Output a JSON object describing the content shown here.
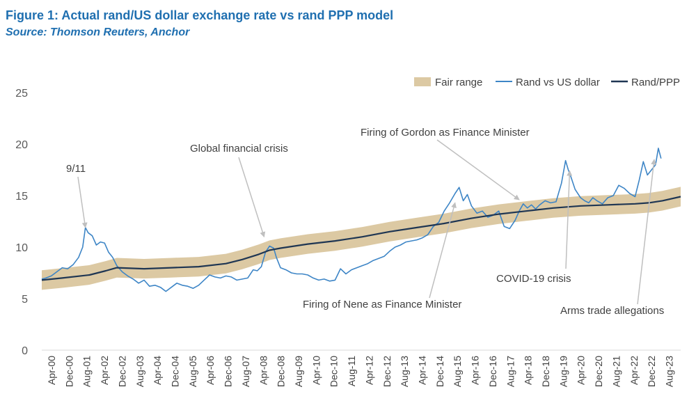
{
  "header": {
    "title": "Figure 1: Actual rand/US dollar exchange rate vs rand PPP model",
    "source": "Source: Thomson Reuters, Anchor"
  },
  "colors": {
    "fair": "#dcc9a3",
    "rand": "#3d85c6",
    "ppp": "#1f3653",
    "arrow": "#bfbfbf",
    "text": "#404040",
    "axis": "#d9d9d9"
  },
  "chart_data": {
    "type": "line",
    "title": "Figure 1: Actual rand/US dollar exchange rate vs rand PPP model",
    "ylim": [
      0,
      25
    ],
    "y_ticks": [
      "0",
      "5",
      "10",
      "15",
      "20",
      "25"
    ],
    "x_range": [
      2000.25,
      2023.67
    ],
    "x_tick_labels": [
      "Apr-00",
      "Dec-00",
      "Aug-01",
      "Apr-02",
      "Dec-02",
      "Aug-03",
      "Apr-04",
      "Dec-04",
      "Aug-05",
      "Apr-06",
      "Dec-06",
      "Aug-07",
      "Apr-08",
      "Dec-08",
      "Aug-09",
      "Apr-10",
      "Dec-10",
      "Aug-11",
      "Apr-12",
      "Dec-12",
      "Aug-13",
      "Apr-14",
      "Dec-14",
      "Aug-15",
      "Apr-16",
      "Dec-16",
      "Aug-17",
      "Apr-18",
      "Dec-18",
      "Aug-19",
      "Apr-20",
      "Dec-20",
      "Aug-21",
      "Apr-22",
      "Dec-22",
      "Aug-23"
    ],
    "legend": [
      {
        "name": "Fair range",
        "style": "band"
      },
      {
        "name": "Rand vs US dollar",
        "style": "line"
      },
      {
        "name": "Rand/PPP",
        "style": "line"
      }
    ],
    "series": [
      {
        "name": "Rand/PPP",
        "x": [
          2000.25,
          2001.0,
          2002.0,
          2002.6,
          2003.0,
          2004.0,
          2005.0,
          2006.0,
          2007.0,
          2007.6,
          2008.2,
          2008.6,
          2009.0,
          2010.0,
          2011.0,
          2012.0,
          2013.0,
          2014.0,
          2015.0,
          2016.0,
          2017.0,
          2018.0,
          2019.0,
          2020.0,
          2021.0,
          2022.0,
          2022.5,
          2023.0,
          2023.67
        ],
        "values": [
          6.8,
          7.0,
          7.3,
          7.7,
          8.0,
          7.9,
          8.0,
          8.1,
          8.4,
          8.8,
          9.3,
          9.7,
          9.9,
          10.3,
          10.6,
          11.0,
          11.5,
          11.9,
          12.3,
          12.8,
          13.2,
          13.5,
          13.8,
          14.0,
          14.1,
          14.2,
          14.3,
          14.5,
          14.9
        ]
      },
      {
        "name": "Fair range",
        "band_half_width": 0.95
      },
      {
        "name": "Rand vs US dollar",
        "x": [
          2000.25,
          2000.4,
          2000.6,
          2000.8,
          2001.0,
          2001.2,
          2001.4,
          2001.6,
          2001.75,
          2001.85,
          2001.95,
          2002.1,
          2002.25,
          2002.4,
          2002.55,
          2002.7,
          2002.85,
          2003.0,
          2003.2,
          2003.4,
          2003.6,
          2003.8,
          2004.0,
          2004.2,
          2004.4,
          2004.6,
          2004.8,
          2005.0,
          2005.2,
          2005.4,
          2005.6,
          2005.8,
          2006.0,
          2006.2,
          2006.4,
          2006.6,
          2006.8,
          2007.0,
          2007.2,
          2007.4,
          2007.6,
          2007.8,
          2008.0,
          2008.15,
          2008.3,
          2008.45,
          2008.6,
          2008.75,
          2008.85,
          2009.0,
          2009.2,
          2009.4,
          2009.6,
          2009.8,
          2010.0,
          2010.2,
          2010.4,
          2010.6,
          2010.8,
          2011.0,
          2011.2,
          2011.4,
          2011.6,
          2011.8,
          2012.0,
          2012.2,
          2012.4,
          2012.6,
          2012.8,
          2013.0,
          2013.2,
          2013.4,
          2013.6,
          2013.8,
          2014.0,
          2014.2,
          2014.4,
          2014.6,
          2014.8,
          2015.0,
          2015.2,
          2015.4,
          2015.55,
          2015.7,
          2015.85,
          2016.0,
          2016.2,
          2016.4,
          2016.6,
          2016.8,
          2017.0,
          2017.2,
          2017.4,
          2017.6,
          2017.75,
          2017.9,
          2018.05,
          2018.2,
          2018.35,
          2018.5,
          2018.7,
          2018.9,
          2019.1,
          2019.3,
          2019.45,
          2019.55,
          2019.65,
          2019.8,
          2020.0,
          2020.15,
          2020.3,
          2020.45,
          2020.6,
          2020.8,
          2021.0,
          2021.2,
          2021.4,
          2021.6,
          2021.8,
          2022.0,
          2022.15,
          2022.3,
          2022.45,
          2022.6,
          2022.75,
          2022.85,
          2022.95
        ],
        "values": [
          6.9,
          7.0,
          7.2,
          7.6,
          8.0,
          7.9,
          8.3,
          9.0,
          10.0,
          11.9,
          11.4,
          11.1,
          10.2,
          10.5,
          10.4,
          9.5,
          9.0,
          8.2,
          7.6,
          7.2,
          6.9,
          6.5,
          6.8,
          6.2,
          6.3,
          6.1,
          5.7,
          6.1,
          6.5,
          6.3,
          6.2,
          6.0,
          6.3,
          6.8,
          7.3,
          7.1,
          7.0,
          7.2,
          7.1,
          6.8,
          6.9,
          7.0,
          7.8,
          7.7,
          8.1,
          9.5,
          10.1,
          9.9,
          9.0,
          8.0,
          7.8,
          7.5,
          7.4,
          7.4,
          7.3,
          7.0,
          6.8,
          6.9,
          6.7,
          6.8,
          7.9,
          7.4,
          7.8,
          8.0,
          8.2,
          8.4,
          8.7,
          8.9,
          9.1,
          9.6,
          10.0,
          10.2,
          10.5,
          10.6,
          10.7,
          10.9,
          11.2,
          12.0,
          12.4,
          13.5,
          14.3,
          15.2,
          15.8,
          14.5,
          15.1,
          14.0,
          13.3,
          13.5,
          12.9,
          13.1,
          13.5,
          12.0,
          11.8,
          12.6,
          13.5,
          14.2,
          13.8,
          14.1,
          13.7,
          14.1,
          14.5,
          14.3,
          14.4,
          16.2,
          18.4,
          17.5,
          16.8,
          15.6,
          14.8,
          14.5,
          14.3,
          14.8,
          14.5,
          14.2,
          14.8,
          15.0,
          16.0,
          15.7,
          15.2,
          14.9,
          16.5,
          18.3,
          17.0,
          17.5,
          18.0,
          19.6,
          18.6
        ]
      }
    ],
    "annotations": [
      {
        "text": "9/11",
        "arrow_to_x": 2001.85,
        "arrow_to_y": 11.9
      },
      {
        "text": "Global financial crisis",
        "arrow_to_x": 2008.4,
        "arrow_to_y": 11.0
      },
      {
        "text": "Firing of Gordon as Finance Minister",
        "arrow_to_x": 2017.75,
        "arrow_to_y": 14.6
      },
      {
        "text": "Firing of Nene as Finance Minister",
        "arrow_to_x": 2015.4,
        "arrow_to_y": 14.3
      },
      {
        "text": "COVID-19 crisis",
        "arrow_to_x": 2019.6,
        "arrow_to_y": 17.4
      },
      {
        "text": "Arms trade allegations",
        "arrow_to_x": 2022.7,
        "arrow_to_y": 18.5
      }
    ]
  }
}
